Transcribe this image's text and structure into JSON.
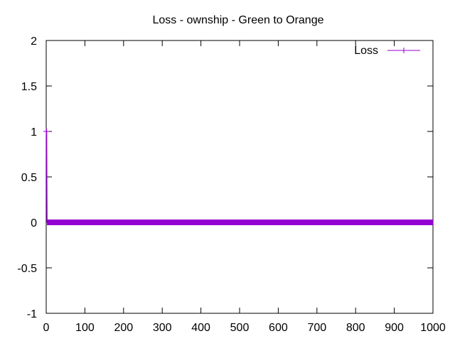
{
  "chart_data": {
    "type": "line",
    "title": "Loss - ownship - Green to Orange",
    "xlabel": "",
    "ylabel": "",
    "xlim": [
      0,
      1000
    ],
    "ylim": [
      -1,
      2
    ],
    "x_ticks": [
      0,
      100,
      200,
      300,
      400,
      500,
      600,
      700,
      800,
      900,
      1000
    ],
    "y_ticks": [
      -1,
      -0.5,
      0,
      0.5,
      1,
      1.5,
      2
    ],
    "x_tick_labels": [
      "0",
      "100",
      "200",
      "300",
      "400",
      "500",
      "600",
      "700",
      "800",
      "900",
      "1000"
    ],
    "y_tick_labels": [
      "-1",
      "-0.5",
      "0",
      "0.5",
      "1",
      "1.5",
      "2"
    ],
    "grid": false,
    "legend_position": "top-right",
    "series": [
      {
        "name": "Loss",
        "color": "#9400d3",
        "marker": "plus",
        "points": [
          {
            "x": 0,
            "y": 1
          },
          {
            "x": 1,
            "y": 1
          },
          {
            "x": 2,
            "y": 0
          },
          {
            "x": 1000,
            "y": 0
          }
        ]
      }
    ]
  }
}
